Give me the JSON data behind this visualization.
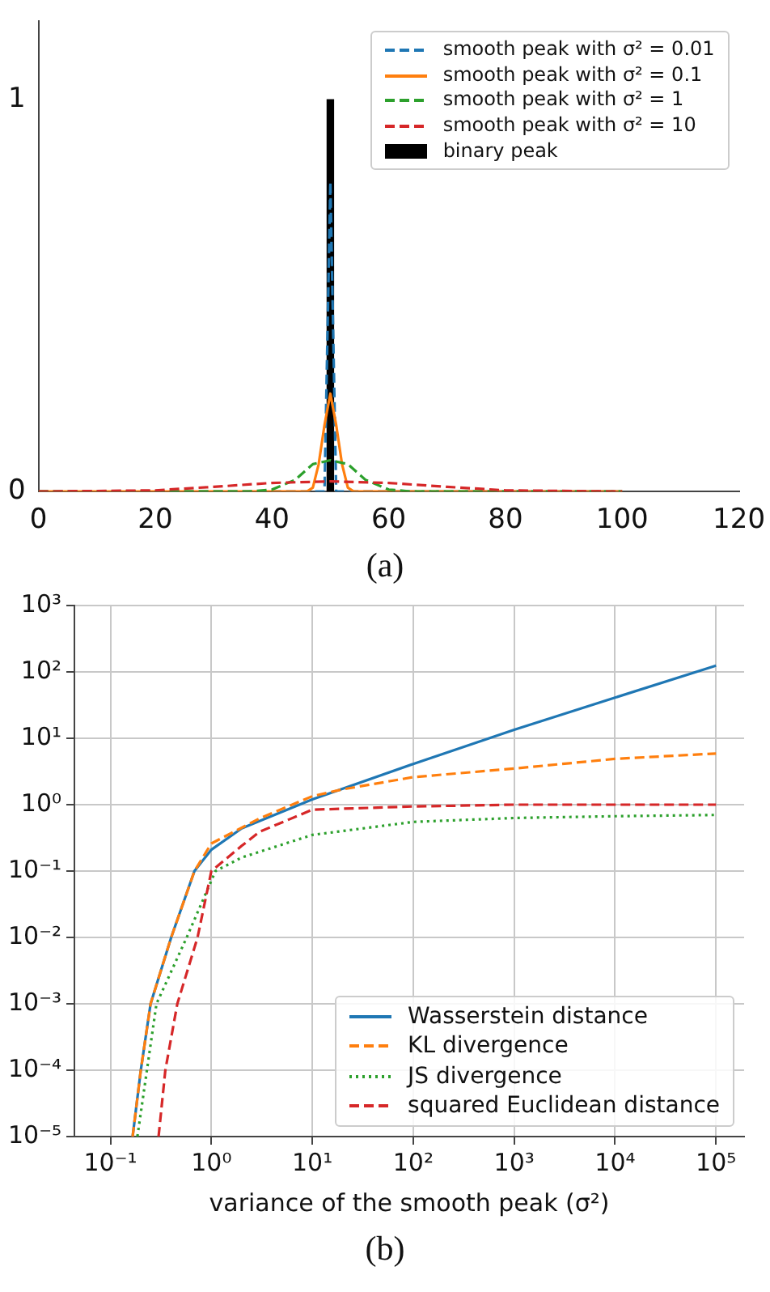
{
  "chart_data": [
    {
      "type": "line",
      "xlim": [
        0,
        120
      ],
      "xticks": [
        0,
        20,
        40,
        60,
        80,
        100,
        120
      ],
      "ylim": [
        0,
        1.2
      ],
      "yticks": [
        0,
        1
      ],
      "grid": false,
      "legend": "top right",
      "marker": "none",
      "annotations": [
        "(a)"
      ],
      "series": [
        {
          "name": "smooth peak with σ² = 0.01",
          "color": "#1f77b4",
          "line_style": "dashed",
          "x": [
            0,
            49,
            50,
            51,
            100
          ],
          "values": [
            0,
            0,
            0.79,
            0,
            0
          ]
        },
        {
          "name": "smooth peak with σ² = 0.1",
          "color": "#ff7f0e",
          "line_style": "solid",
          "x": [
            0,
            46,
            47,
            48,
            49,
            50,
            51,
            52,
            53,
            54,
            100
          ],
          "values": [
            0,
            0,
            0.01,
            0.07,
            0.17,
            0.25,
            0.17,
            0.07,
            0.01,
            0,
            0
          ]
        },
        {
          "name": "smooth peak with σ² = 1",
          "color": "#2ca02c",
          "line_style": "dashed",
          "x": [
            0,
            36,
            40,
            44,
            47,
            50,
            53,
            56,
            60,
            64,
            100
          ],
          "values": [
            0,
            0,
            0.005,
            0.03,
            0.07,
            0.08,
            0.07,
            0.03,
            0.005,
            0,
            0
          ]
        },
        {
          "name": "smooth peak with σ² = 10",
          "color": "#d62728",
          "line_style": "dashed",
          "x": [
            0,
            20,
            30,
            40,
            50,
            60,
            70,
            80,
            100
          ],
          "values": [
            0,
            0.003,
            0.012,
            0.022,
            0.026,
            0.022,
            0.012,
            0.003,
            0
          ]
        },
        {
          "name": "binary peak",
          "type": "bar",
          "color": "#000000",
          "x": [
            50
          ],
          "values": [
            1
          ]
        }
      ]
    },
    {
      "type": "line",
      "log": "xy",
      "xlim": [
        0.044,
        190000
      ],
      "xticks": [
        {
          "value": 0.1,
          "label": "10⁻¹"
        },
        {
          "value": 1,
          "label": "10⁰"
        },
        {
          "value": 10,
          "label": "10¹"
        },
        {
          "value": 100,
          "label": "10²"
        },
        {
          "value": 1000,
          "label": "10³"
        },
        {
          "value": 10000,
          "label": "10⁴"
        },
        {
          "value": 100000,
          "label": "10⁵"
        }
      ],
      "ylim": [
        1e-05,
        1000
      ],
      "yticks": [
        {
          "value": 1e-05,
          "label": "10⁻⁵"
        },
        {
          "value": 0.0001,
          "label": "10⁻⁴"
        },
        {
          "value": 0.001,
          "label": "10⁻³"
        },
        {
          "value": 0.01,
          "label": "10⁻²"
        },
        {
          "value": 0.1,
          "label": "10⁻¹"
        },
        {
          "value": 1,
          "label": "10⁰"
        },
        {
          "value": 10,
          "label": "10¹"
        },
        {
          "value": 100,
          "label": "10²"
        },
        {
          "value": 1000,
          "label": "10³"
        }
      ],
      "grid": true,
      "legend": "bottom right",
      "marker": "none",
      "xlabel": "variance of the smooth peak (σ²)",
      "annotations": [
        "(b)"
      ],
      "series": [
        {
          "name": "Wasserstein distance",
          "color": "#1f77b4",
          "line_style": "solid",
          "x": [
            0.166,
            0.2,
            0.25,
            0.4,
            0.68,
            1,
            2,
            10,
            100,
            1000,
            10000,
            100000
          ],
          "values": [
            1e-05,
            0.0001,
            0.001,
            0.01,
            0.1,
            0.21,
            0.44,
            1.2,
            4.1,
            13.4,
            41,
            124
          ]
        },
        {
          "name": "KL divergence",
          "color": "#ff7f0e",
          "line_style": "dashed",
          "x": [
            0.166,
            0.2,
            0.25,
            0.4,
            0.68,
            1,
            3,
            10,
            20,
            100,
            1000,
            10000,
            100000
          ],
          "values": [
            1e-05,
            0.0001,
            0.001,
            0.01,
            0.1,
            0.26,
            0.62,
            1.34,
            1.7,
            2.6,
            3.5,
            4.9,
            5.9
          ]
        },
        {
          "name": "JS divergence",
          "color": "#2ca02c",
          "line_style": "dotted",
          "x": [
            0.185,
            0.23,
            0.286,
            0.57,
            1.1,
            2,
            10,
            100,
            1000,
            10000,
            100000
          ],
          "values": [
            1e-05,
            0.0001,
            0.001,
            0.01,
            0.1,
            0.16,
            0.35,
            0.55,
            0.63,
            0.67,
            0.7
          ]
        },
        {
          "name": "squared Euclidean distance",
          "color": "#d62728",
          "line_style": "dashed",
          "x": [
            0.3,
            0.35,
            0.46,
            0.73,
            1.0,
            2,
            3,
            10,
            100,
            1000,
            100000
          ],
          "values": [
            1e-05,
            0.0001,
            0.001,
            0.01,
            0.1,
            0.24,
            0.39,
            0.84,
            0.94,
            1.0,
            1.0
          ]
        }
      ]
    }
  ]
}
